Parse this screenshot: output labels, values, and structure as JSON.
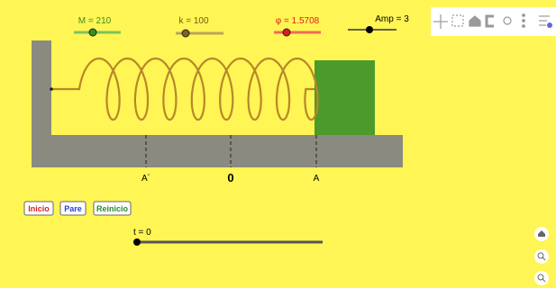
{
  "sliders": [
    {
      "label": "M = 210"
    },
    {
      "label": "k = 100"
    },
    {
      "label": "φ = 1.5708"
    },
    {
      "label": "Amp = 3"
    }
  ],
  "time_slider": {
    "label": "t = 0"
  },
  "axis_labels": [
    "A´",
    "0",
    "A"
  ],
  "buttons": [
    "Inicio",
    "Pare",
    "Reinicio"
  ]
}
